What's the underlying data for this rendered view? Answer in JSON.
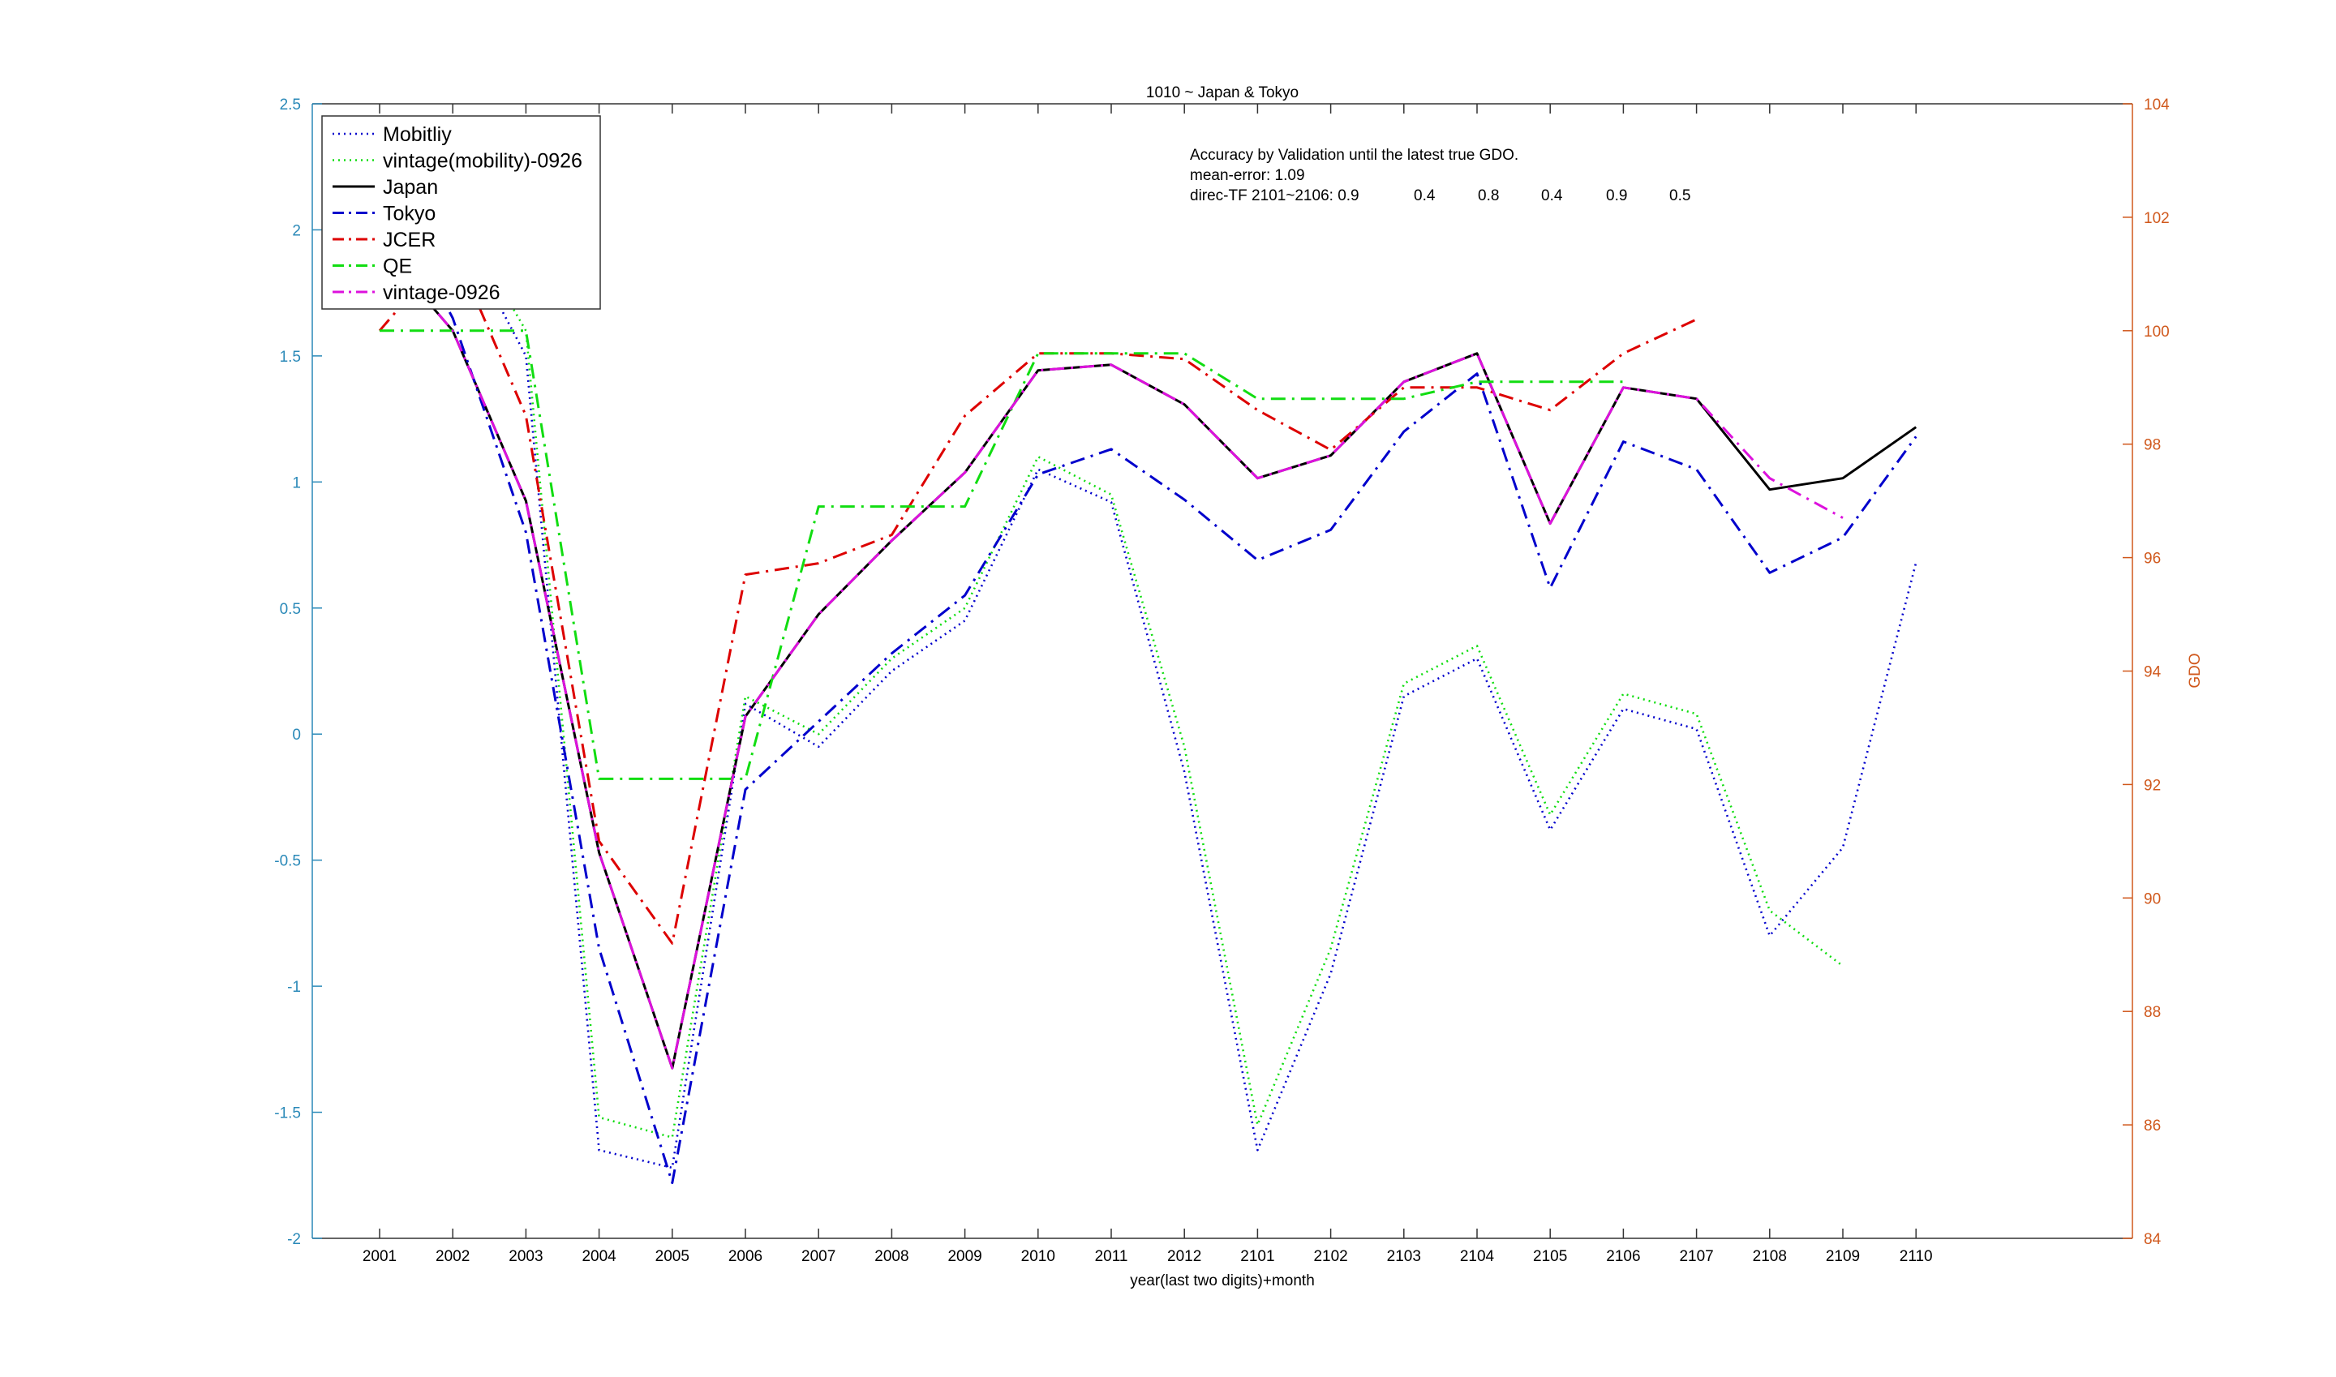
{
  "chart_data": {
    "type": "line",
    "title": "1010 ~ Japan & Tokyo",
    "xlabel": "year(last two digits)+month",
    "ylabel_left": "",
    "ylabel_right": "GDO",
    "categories": [
      "2001",
      "2002",
      "2003",
      "2004",
      "2005",
      "2006",
      "2007",
      "2008",
      "2009",
      "2010",
      "2011",
      "2012",
      "2101",
      "2102",
      "2103",
      "2104",
      "2105",
      "2106",
      "2107",
      "2108",
      "2109",
      "2110"
    ],
    "ylim_left": [
      -2,
      2.5
    ],
    "yticks_left": [
      "-2",
      "-1.5",
      "-1",
      "-0.5",
      "0",
      "0.5",
      "1",
      "1.5",
      "2",
      "2.5"
    ],
    "ylim_right": [
      84,
      104
    ],
    "yticks_right": [
      "84",
      "86",
      "88",
      "90",
      "92",
      "94",
      "96",
      "98",
      "100",
      "102",
      "104"
    ],
    "left_axis_color": "#2a89b8",
    "right_axis_color": "#d0581c",
    "legend_position": "top-left",
    "series": [
      {
        "name": "Mobitliy",
        "axis": "left",
        "color": "#0000cc",
        "style": "dotted",
        "values": [
          2.1,
          2.05,
          1.5,
          -1.65,
          -1.72,
          0.12,
          -0.05,
          0.25,
          0.45,
          1.05,
          0.92,
          -0.15,
          -1.65,
          -0.95,
          0.15,
          0.3,
          -0.38,
          0.1,
          0.02,
          -0.8,
          -0.45,
          0.68
        ]
      },
      {
        "name": "vintage(mobility)-0926",
        "axis": "left",
        "color": "#11dd11",
        "style": "dotted",
        "values": [
          2.2,
          2.1,
          1.6,
          -1.52,
          -1.6,
          0.15,
          0.0,
          0.3,
          0.5,
          1.1,
          0.95,
          -0.05,
          -1.55,
          -0.85,
          0.2,
          0.35,
          -0.32,
          0.16,
          0.08,
          -0.7,
          -0.92,
          null
        ]
      },
      {
        "name": "Japan",
        "axis": "right",
        "color": "#000000",
        "style": "solid",
        "values": [
          101.5,
          100.0,
          97.0,
          90.8,
          87.0,
          93.2,
          95.0,
          96.3,
          97.5,
          99.3,
          99.4,
          98.7,
          97.4,
          97.8,
          99.1,
          99.6,
          96.6,
          99.0,
          98.8,
          97.2,
          97.4,
          98.3
        ]
      },
      {
        "name": "Tokyo",
        "axis": "left",
        "color": "#0000cc",
        "style": "dashdot",
        "values": [
          2.2,
          1.65,
          0.8,
          -0.85,
          -1.78,
          -0.22,
          0.05,
          0.32,
          0.55,
          1.03,
          1.13,
          0.93,
          0.69,
          0.81,
          1.2,
          1.43,
          0.58,
          1.16,
          1.05,
          0.64,
          0.78,
          1.18
        ]
      },
      {
        "name": "JCER",
        "axis": "right",
        "color": "#dd0000",
        "style": "dashdot",
        "values": [
          100.0,
          101.5,
          98.5,
          91.0,
          89.2,
          95.7,
          95.9,
          96.4,
          98.5,
          99.6,
          99.6,
          99.5,
          98.6,
          97.9,
          99.0,
          99.0,
          98.6,
          99.6,
          100.2,
          null,
          null,
          null
        ]
      },
      {
        "name": "QE",
        "axis": "right",
        "color": "#11dd11",
        "style": "dashdot",
        "values": [
          100.0,
          100.0,
          100.0,
          92.1,
          92.1,
          92.1,
          96.9,
          96.9,
          96.9,
          99.6,
          99.6,
          99.6,
          98.8,
          98.8,
          98.8,
          99.1,
          99.1,
          99.1,
          null,
          null,
          null,
          null
        ]
      },
      {
        "name": "vintage-0926",
        "axis": "right",
        "color": "#dd11dd",
        "style": "dashdot",
        "values": [
          101.5,
          100.0,
          97.0,
          90.8,
          87.0,
          93.2,
          95.0,
          96.3,
          97.5,
          99.3,
          99.4,
          98.7,
          97.4,
          97.8,
          99.1,
          99.6,
          96.6,
          99.0,
          98.8,
          97.4,
          96.7,
          null
        ]
      }
    ],
    "annotations": [
      "Accuracy by Validation until the latest true GDO.",
      "mean-error: 1.09",
      "direc-TF 2101~2106: 0.9",
      "0.4",
      "0.8",
      "0.4",
      "0.9",
      "0.5"
    ]
  }
}
